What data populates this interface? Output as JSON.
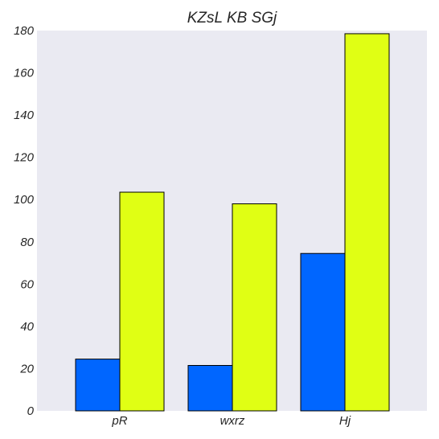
{
  "chart_data": {
    "type": "bar",
    "title": "KZsL KB SGj",
    "xlabel": "",
    "ylabel": "",
    "categories": [
      "pR",
      "wxrz",
      "Hj"
    ],
    "series": [
      {
        "values": [
          24.5,
          21.5,
          74.5
        ],
        "color": "#0066ff"
      },
      {
        "values": [
          103.5,
          98,
          178.5
        ],
        "color": "#e0ff14"
      }
    ],
    "ylim": [
      0,
      180
    ],
    "yticks": [
      0,
      20,
      40,
      60,
      80,
      100,
      120,
      140,
      160,
      180
    ],
    "grid": false,
    "legend": "none",
    "colors": {
      "plot_background": "#eaeaf2",
      "bar_edge": "#000000",
      "text": "#262626"
    }
  }
}
